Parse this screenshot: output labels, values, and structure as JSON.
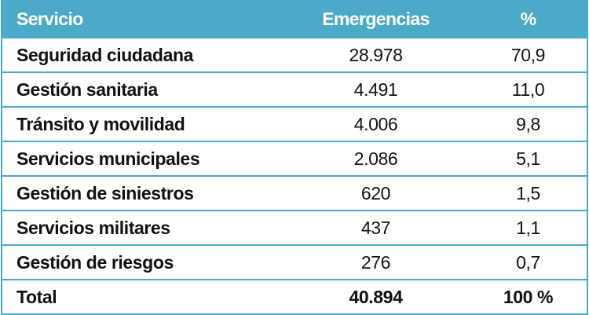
{
  "header": {
    "servicio": "Servicio",
    "emergencias": "Emergencias",
    "pct": "%"
  },
  "rows": [
    {
      "servicio": "Seguridad ciudadana",
      "emergencias": "28.978",
      "pct": "70,9"
    },
    {
      "servicio": "Gestión sanitaria",
      "emergencias": "4.491",
      "pct": "11,0"
    },
    {
      "servicio": "Tránsito y movilidad",
      "emergencias": "4.006",
      "pct": "9,8"
    },
    {
      "servicio": "Servicios municipales",
      "emergencias": "2.086",
      "pct": "5,1"
    },
    {
      "servicio": "Gestión de siniestros",
      "emergencias": "620",
      "pct": "1,5"
    },
    {
      "servicio": "Servicios militares",
      "emergencias": "437",
      "pct": "1,1"
    },
    {
      "servicio": "Gestión de riesgos",
      "emergencias": "276",
      "pct": "0,7"
    }
  ],
  "total": {
    "servicio": "Total",
    "emergencias": "40.894",
    "pct": "100 %"
  },
  "colors": {
    "header": "#4aaac8",
    "border": "#4aaac8"
  }
}
